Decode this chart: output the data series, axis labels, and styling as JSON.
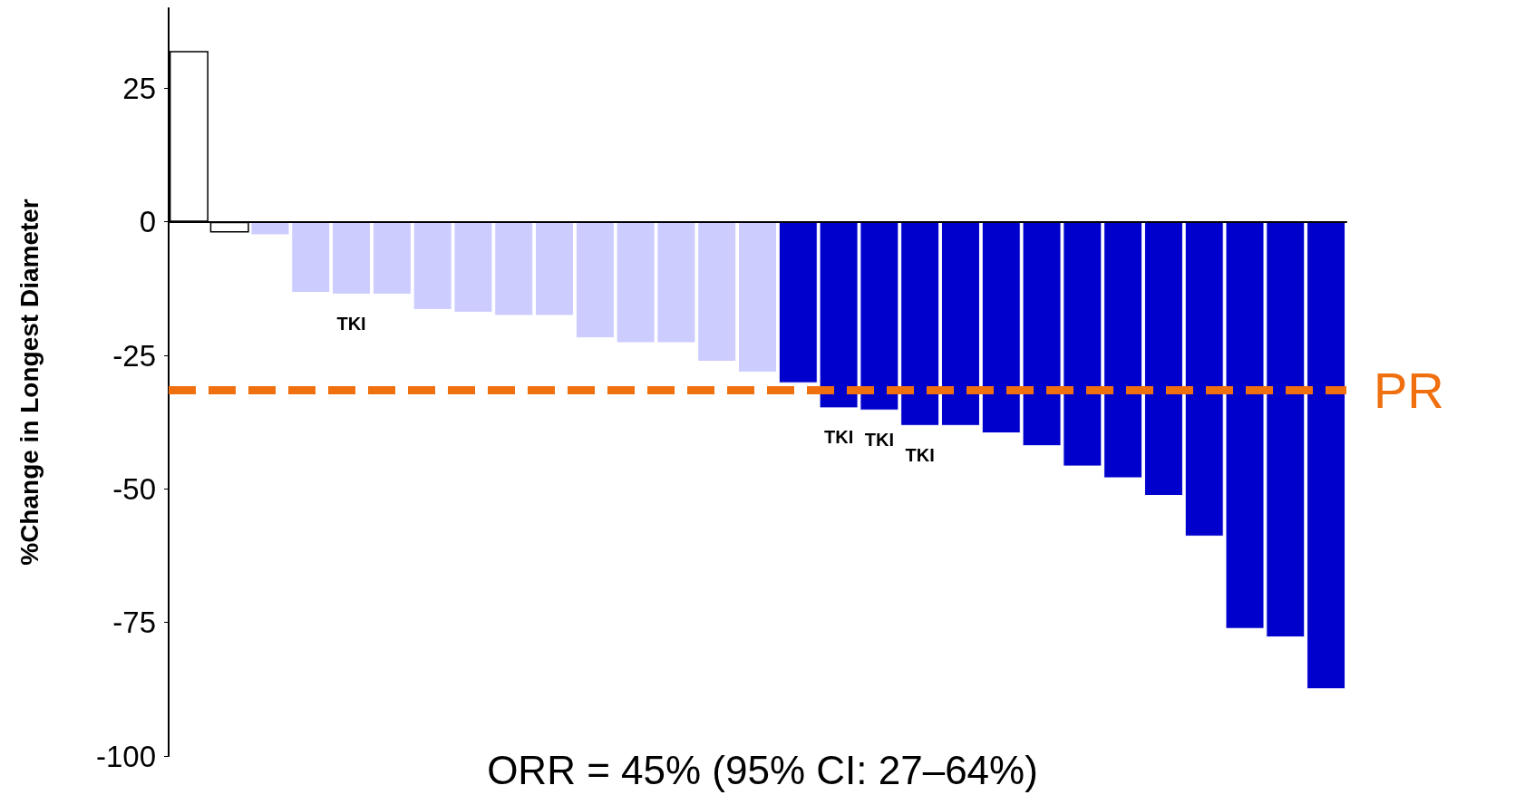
{
  "chart_data": {
    "type": "bar",
    "ylabel": "%Change in Longest Diameter",
    "categories": [
      null,
      null,
      null,
      null,
      null,
      null,
      null,
      null,
      null,
      null,
      null,
      null,
      null,
      null,
      null,
      null,
      null,
      null,
      null,
      null,
      null,
      null,
      null,
      null,
      null,
      null,
      null,
      null,
      null
    ],
    "values": [
      32,
      -2,
      -2.5,
      -13.3,
      -13.6,
      -13.6,
      -16.5,
      -17,
      -17.6,
      -17.6,
      -21.8,
      -22.7,
      -22.7,
      -26.2,
      -28.2,
      -30.2,
      -34.9,
      -35.3,
      -38.2,
      -38.2,
      -39.6,
      -42,
      -45.8,
      -48,
      -51.3,
      -58.9,
      -76.2,
      -77.8,
      -87.5
    ],
    "colors": [
      "#ffffff",
      "#ffffff",
      "#ccccff",
      "#ccccff",
      "#ccccff",
      "#ccccff",
      "#ccccff",
      "#ccccff",
      "#ccccff",
      "#ccccff",
      "#ccccff",
      "#ccccff",
      "#ccccff",
      "#ccccff",
      "#ccccff",
      "#0000cc",
      "#0000cc",
      "#0000cc",
      "#0000cc",
      "#0000cc",
      "#0000cc",
      "#0000cc",
      "#0000cc",
      "#0000cc",
      "#0000cc",
      "#0000cc",
      "#0000cc",
      "#0000cc",
      "#0000cc"
    ],
    "ylim": [
      -100,
      40
    ],
    "yticks": [
      -100,
      -75,
      -50,
      -25,
      0,
      25
    ],
    "ref_lines": [
      {
        "axis": "y",
        "value": -31.5,
        "label": "PR",
        "color": "#f07010",
        "line_style": "dashed"
      }
    ],
    "annotations": [
      {
        "text": "TKI",
        "y": -13.6
      },
      {
        "text": "TKI",
        "y": -34.9
      },
      {
        "text": "TKI",
        "y": -35.3
      },
      {
        "text": "TKI",
        "y": -38.2
      },
      "ORR = 45% (95% CI: 27–64%)"
    ]
  }
}
